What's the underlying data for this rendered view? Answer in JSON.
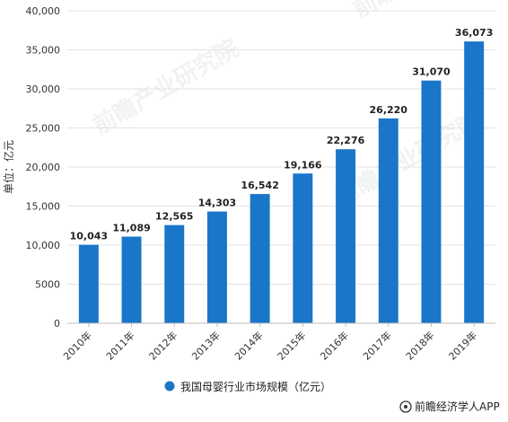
{
  "chart_data": {
    "type": "bar",
    "categories": [
      "2010年",
      "2011年",
      "2012年",
      "2013年",
      "2014年",
      "2015年",
      "2016年",
      "2017年",
      "2018年",
      "2019年"
    ],
    "series": [
      {
        "name": "我国母婴行业市场规模（亿元）",
        "values": [
          10043,
          11089,
          12565,
          14303,
          16542,
          19166,
          22276,
          26220,
          31070,
          36073
        ],
        "value_labels": [
          "10,043",
          "11,089",
          "12,565",
          "14,303",
          "16,542",
          "19,166",
          "22,276",
          "26,220",
          "31,070",
          "36,073"
        ],
        "color": "#1976c9"
      }
    ],
    "ylabel": "单位：亿元",
    "ylim": [
      0,
      40000
    ],
    "y_ticks": [
      0,
      5000,
      10000,
      15000,
      20000,
      25000,
      30000,
      35000,
      40000
    ],
    "y_tick_labels": [
      "0",
      "5000",
      "10,000",
      "15,000",
      "20,000",
      "25,000",
      "30,000",
      "35,000",
      "40,000"
    ],
    "grid": true,
    "legend_position": "bottom-center",
    "credit": "前瞻经济学人APP",
    "watermark": "前瞻产业研究院"
  }
}
